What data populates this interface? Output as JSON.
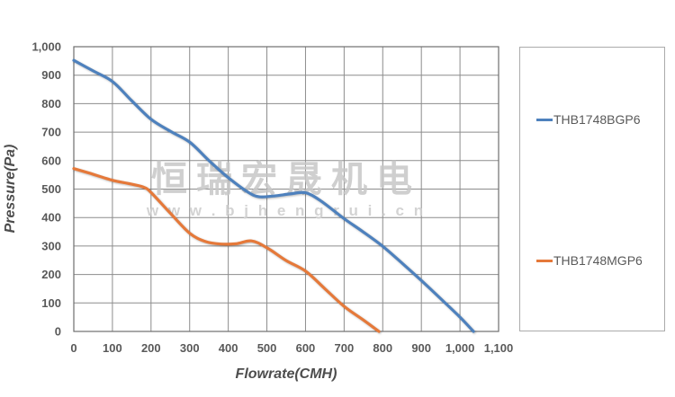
{
  "watermark": {
    "line1": "恒瑞宏晟机电",
    "line2": "w w w . b j h e n g r u i . c n"
  },
  "colors": {
    "series1": "#4e81bd",
    "series2": "#e5793a",
    "grid": "#8c8c8c",
    "plot_border": "#6e6e6e",
    "tick_text": "#595959",
    "axis_title_text": "#4d4d4d",
    "legend_border": "#ababab",
    "legend_text": "#595959",
    "watermark_text": "#c7c7c7",
    "background": "#ffffff"
  },
  "chart_data": {
    "type": "line",
    "title": "",
    "xlabel": "Flowrate(CMH)",
    "ylabel": "Pressure(Pa)",
    "xlim": [
      0,
      1100
    ],
    "ylim": [
      0,
      1000
    ],
    "grid": "on",
    "legend_position": "right",
    "x_ticks": [
      0,
      100,
      200,
      300,
      400,
      500,
      600,
      700,
      800,
      900,
      1000,
      1100
    ],
    "x_tick_labels": [
      "0",
      "100",
      "200",
      "300",
      "400",
      "500",
      "600",
      "700",
      "800",
      "900",
      "1,000",
      "1,100"
    ],
    "y_ticks": [
      0,
      100,
      200,
      300,
      400,
      500,
      600,
      700,
      800,
      900,
      1000
    ],
    "y_tick_labels": [
      "0",
      "100",
      "200",
      "300",
      "400",
      "500",
      "600",
      "700",
      "800",
      "900",
      "1,000"
    ],
    "series": [
      {
        "name": "THB1748BGP6",
        "color": "#4e81bd",
        "points": [
          [
            0,
            952
          ],
          [
            50,
            915
          ],
          [
            100,
            878
          ],
          [
            150,
            810
          ],
          [
            200,
            745
          ],
          [
            250,
            703
          ],
          [
            300,
            665
          ],
          [
            350,
            600
          ],
          [
            400,
            540
          ],
          [
            450,
            490
          ],
          [
            480,
            473
          ],
          [
            520,
            476
          ],
          [
            560,
            483
          ],
          [
            600,
            487
          ],
          [
            640,
            458
          ],
          [
            700,
            396
          ],
          [
            750,
            349
          ],
          [
            800,
            299
          ],
          [
            850,
            240
          ],
          [
            900,
            179
          ],
          [
            950,
            115
          ],
          [
            1000,
            50
          ],
          [
            1035,
            0
          ]
        ]
      },
      {
        "name": "THB1748MGP6",
        "color": "#e5793a",
        "points": [
          [
            0,
            572
          ],
          [
            40,
            556
          ],
          [
            100,
            531
          ],
          [
            140,
            520
          ],
          [
            180,
            507
          ],
          [
            200,
            488
          ],
          [
            250,
            415
          ],
          [
            300,
            345
          ],
          [
            340,
            316
          ],
          [
            380,
            307
          ],
          [
            420,
            308
          ],
          [
            460,
            318
          ],
          [
            500,
            294
          ],
          [
            550,
            249
          ],
          [
            600,
            212
          ],
          [
            650,
            150
          ],
          [
            700,
            88
          ],
          [
            750,
            40
          ],
          [
            790,
            0
          ]
        ]
      }
    ]
  },
  "legend": {
    "items": [
      {
        "label": "THB1748BGP6"
      },
      {
        "label": "THB1748MGP6"
      }
    ]
  }
}
